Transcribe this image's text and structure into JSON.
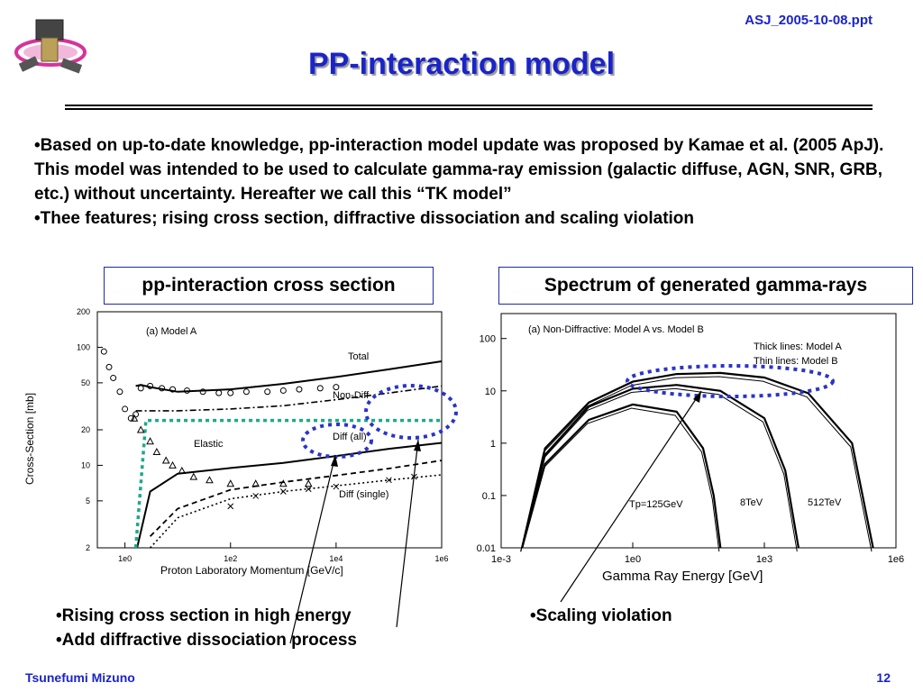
{
  "header": {
    "file_name": "ASJ_2005-10-08.ppt",
    "title": "PP-interaction model",
    "logo_icon": "satellite-logo-icon"
  },
  "bullets": [
    "•Based on up-to-date knowledge, pp-interaction model update was proposed by Kamae et al. (2005 ApJ). This model was intended to be used to calculate gamma-ray emission (galactic diffuse, AGN, SNR, GRB, etc.) without uncertainty. Hereafter we call this “TK model”",
    "•Thee features; rising cross section, diffractive dissociation and scaling violation"
  ],
  "boxes": {
    "left": "pp-interaction cross section",
    "right": "Spectrum of generated gamma-rays"
  },
  "notes_left": [
    "•Rising cross section in high energy",
    "•Add diffractive dissociation process"
  ],
  "notes_right": [
    "•Scaling violation"
  ],
  "footer": {
    "author": "Tsunefumi Mizuno",
    "page": "12"
  },
  "colors": {
    "accent": "#1a24c8",
    "highlight_green": "#1fa88a",
    "highlight_blue": "#2a34c8"
  },
  "chart_data": [
    {
      "type": "line",
      "panel_label": "(a) Model A",
      "xlabel": "Proton Laboratory Momentum [GeV/c]",
      "ylabel": "Cross-Section [mb]",
      "xscale": "log",
      "yscale": "log",
      "xlim": [
        0.3,
        1000000
      ],
      "ylim": [
        2,
        200
      ],
      "x_ticks": [
        "1e0",
        "1e2",
        "1e4",
        "1e6"
      ],
      "y_ticks": [
        "200",
        "100",
        "50",
        "20",
        "10",
        "5",
        "2"
      ],
      "series": [
        {
          "name": "Total",
          "style": "solid",
          "x": [
            1.6,
            2,
            3,
            10,
            100,
            1000,
            10000,
            100000,
            1000000
          ],
          "y": [
            47,
            48,
            46,
            42,
            44,
            49,
            56,
            65,
            76
          ]
        },
        {
          "name": "Non-Diff",
          "style": "dashdot",
          "x": [
            1.6,
            3,
            10,
            100,
            1000,
            10000,
            100000,
            1000000
          ],
          "y": [
            29,
            29,
            29,
            30,
            32,
            36,
            41,
            47
          ]
        },
        {
          "name": "Elastic",
          "style": "solid",
          "x": [
            1.7,
            3,
            10,
            100,
            1000,
            10000,
            100000,
            1000000
          ],
          "y": [
            2,
            6,
            8.5,
            9.5,
            10.5,
            12,
            13.8,
            15.5
          ]
        },
        {
          "name": "Diff (all)",
          "style": "dashed",
          "x": [
            3,
            10,
            100,
            1000,
            10000,
            100000,
            1000000
          ],
          "y": [
            2.5,
            4.3,
            6.2,
            7.2,
            8.2,
            9.4,
            11
          ]
        },
        {
          "name": "Diff (single)",
          "style": "dotted",
          "x": [
            3,
            10,
            100,
            1000,
            10000,
            100000,
            1000000
          ],
          "y": [
            2,
            3.6,
            5.2,
            6,
            6.7,
            7.5,
            8.3
          ]
        },
        {
          "name": "",
          "style": "green-highlight",
          "x": [
            1.6,
            2.5,
            1000000
          ],
          "y": [
            2,
            24,
            24
          ]
        }
      ],
      "markers_circle": {
        "x": [
          0.4,
          0.5,
          0.6,
          0.8,
          1,
          1.3,
          1.6,
          2,
          3,
          5,
          8,
          15,
          30,
          60,
          100,
          200,
          500,
          1000,
          2000,
          5000,
          10000
        ],
        "y": [
          92,
          68,
          55,
          42,
          30,
          25,
          27,
          45,
          47,
          45,
          44,
          43,
          42,
          41,
          41,
          42,
          42,
          43,
          44,
          45,
          46
        ]
      },
      "markers_triangle": {
        "x": [
          1.5,
          2,
          3,
          4,
          6,
          8,
          12,
          20,
          40,
          100,
          300,
          1000,
          3000
        ],
        "y": [
          25,
          20,
          16,
          13,
          11,
          10,
          9,
          8,
          7.5,
          7,
          7,
          7,
          7
        ]
      },
      "markers_cross": {
        "x": [
          100,
          300,
          1000,
          3000,
          10000,
          100000,
          300000
        ],
        "y": [
          4.5,
          5.5,
          6,
          6.3,
          6.6,
          7.5,
          8
        ]
      },
      "highlights": [
        "Diff (all)",
        "high-energy total"
      ]
    },
    {
      "type": "line",
      "panel_label": "(a) Non-Diffractive: Model A vs. Model B",
      "legend_lines": [
        "Thick lines: Model A",
        "Thin lines: Model B"
      ],
      "xlabel": "Gamma Ray Energy [GeV]",
      "xscale": "log",
      "yscale": "log",
      "xlim": [
        0.001,
        1000000
      ],
      "ylim": [
        0.01,
        300
      ],
      "x_ticks": [
        "1e-3",
        "1e0",
        "1e3",
        "1e6"
      ],
      "y_ticks": [
        "100",
        "10",
        "1",
        "0.1",
        "0.01"
      ],
      "series": [
        {
          "name": "Tp=125GeV",
          "style": "thick",
          "x": [
            0.003,
            0.01,
            0.1,
            1,
            10,
            40,
            70,
            100
          ],
          "y": [
            0.01,
            0.4,
            2.8,
            5.5,
            4,
            0.8,
            0.1,
            0.01
          ]
        },
        {
          "name": "8TeV",
          "style": "thick",
          "x": [
            0.003,
            0.01,
            0.1,
            1,
            10,
            100,
            1000,
            3000,
            6000
          ],
          "y": [
            0.01,
            0.6,
            5,
            11,
            13,
            10,
            3,
            0.3,
            0.01
          ]
        },
        {
          "name": "512TeV",
          "style": "thick",
          "x": [
            0.003,
            0.01,
            0.1,
            1,
            10,
            100,
            1000,
            10000,
            100000,
            300000
          ],
          "y": [
            0.01,
            0.8,
            6,
            15,
            21,
            22,
            18,
            9,
            1,
            0.01
          ]
        }
      ],
      "point_labels": [
        "Tp=125GeV",
        "8TeV",
        "512TeV"
      ]
    }
  ]
}
